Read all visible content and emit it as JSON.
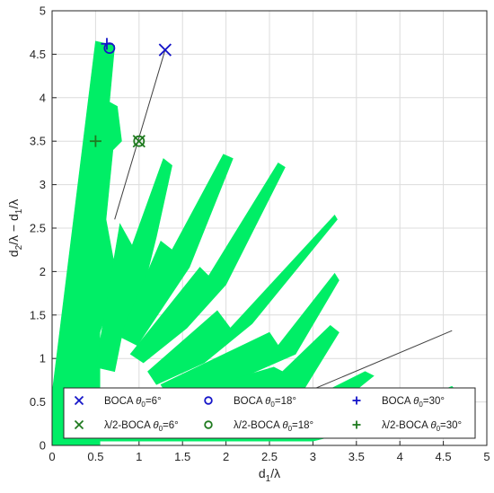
{
  "chart_data": {
    "type": "scatter",
    "xlabel_main": "d",
    "xlabel_sub": "1",
    "xlabel_tail": "/λ",
    "ylabel": {
      "p1": "d",
      "s1": "2",
      "p2": "/λ − d",
      "s2": "1",
      "p3": "/λ"
    },
    "xlim": [
      0,
      5
    ],
    "ylim": [
      0,
      5
    ],
    "x_ticks": [
      "0",
      "0.5",
      "1",
      "1.5",
      "2",
      "2.5",
      "3",
      "3.5",
      "4",
      "4.5",
      "5"
    ],
    "y_ticks": [
      "0",
      "0.5",
      "1",
      "1.5",
      "2",
      "2.5",
      "3",
      "3.5",
      "4",
      "4.5",
      "5"
    ],
    "grid": true,
    "legend_position": "bottom",
    "colors": {
      "region": "#00ee66",
      "boca": "#1515c8",
      "half_boca": "#1f7a1f",
      "line": "#404040",
      "grid": "#dcdcdc",
      "axis": "#262626"
    },
    "region_note_fill": "green shaded feasible region (grating-lobe-free)",
    "series": [
      {
        "name": "BOCA θ0=6°",
        "marker": "x",
        "color": "#1515c8",
        "points": [
          [
            1.3,
            4.55
          ]
        ]
      },
      {
        "name": "BOCA θ0=18°",
        "marker": "o",
        "color": "#1515c8",
        "points": [
          [
            0.66,
            4.57
          ]
        ]
      },
      {
        "name": "BOCA θ0=30°",
        "marker": "+",
        "color": "#1515c8",
        "points": [
          [
            0.63,
            4.62
          ]
        ]
      },
      {
        "name": "λ/2-BOCA θ0=6°",
        "marker": "x",
        "color": "#1f7a1f",
        "points": [
          [
            1.0,
            3.5
          ]
        ]
      },
      {
        "name": "λ/2-BOCA θ0=18°",
        "marker": "o",
        "color": "#1f7a1f",
        "points": [
          [
            1.0,
            3.5
          ]
        ]
      },
      {
        "name": "λ/2-BOCA θ0=30°",
        "marker": "+",
        "color": "#1f7a1f",
        "points": [
          [
            0.5,
            3.5
          ]
        ]
      }
    ],
    "lines": [
      {
        "from": [
          0.72,
          2.6
        ],
        "to": [
          1.3,
          4.55
        ]
      },
      {
        "from": [
          2.3,
          0.35
        ],
        "to": [
          4.6,
          1.32
        ]
      }
    ],
    "legend": {
      "items": [
        {
          "prefix": "BOCA ",
          "theta": "θ",
          "sub": "0",
          "suffix": "=6°",
          "marker": "x",
          "color": "#1515c8"
        },
        {
          "prefix": "BOCA ",
          "theta": "θ",
          "sub": "0",
          "suffix": "=18°",
          "marker": "o",
          "color": "#1515c8"
        },
        {
          "prefix": "BOCA ",
          "theta": "θ",
          "sub": "0",
          "suffix": "=30°",
          "marker": "+",
          "color": "#1515c8"
        },
        {
          "prefix": "λ/2-BOCA ",
          "theta": "θ",
          "sub": "0",
          "suffix": "=6°",
          "marker": "x",
          "color": "#1f7a1f"
        },
        {
          "prefix": "λ/2-BOCA ",
          "theta": "θ",
          "sub": "0",
          "suffix": "=18°",
          "marker": "o",
          "color": "#1f7a1f"
        },
        {
          "prefix": "λ/2-BOCA ",
          "theta": "θ",
          "sub": "0",
          "suffix": "=30°",
          "marker": "+",
          "color": "#1f7a1f"
        }
      ]
    }
  }
}
